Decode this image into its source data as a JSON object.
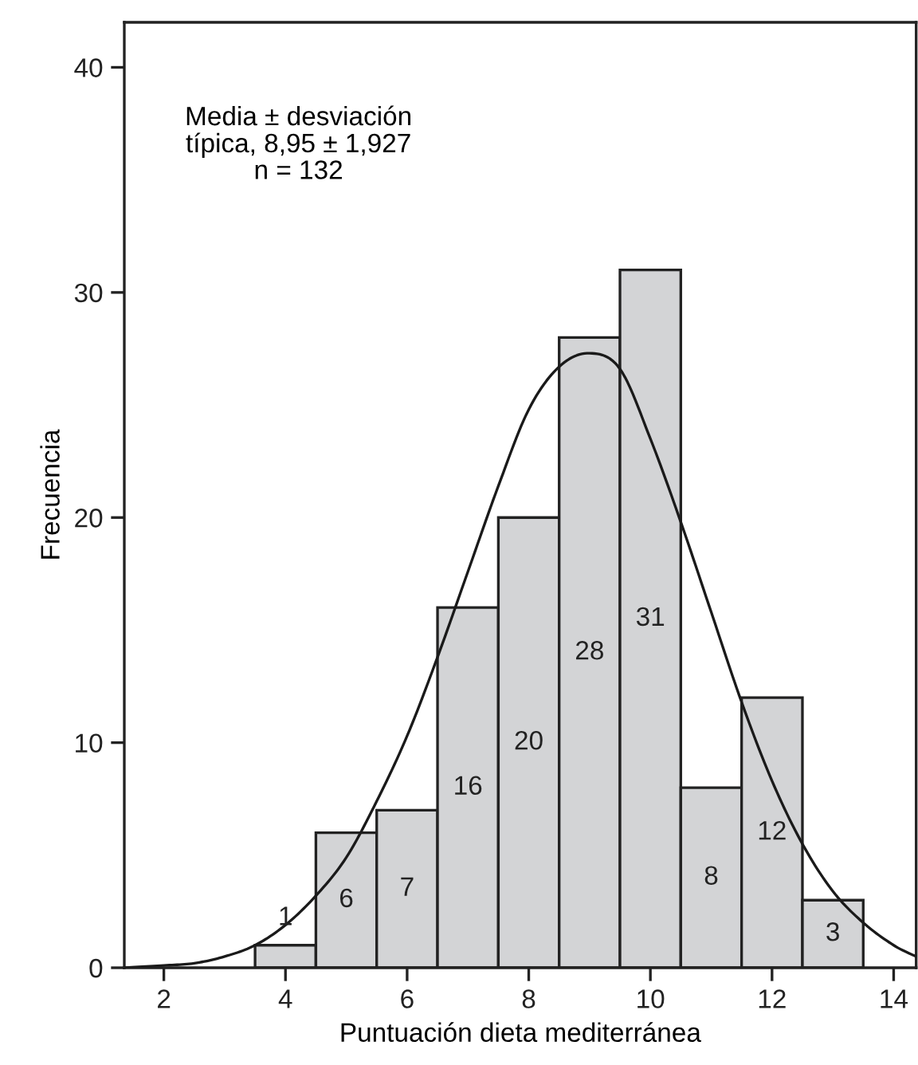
{
  "chart_data": {
    "type": "histogram",
    "xlabel": "Puntuación dieta mediterránea",
    "ylabel": "Frecuencia",
    "bins": [
      3.5,
      4.5,
      5.5,
      6.5,
      7.5,
      8.5,
      9.5,
      10.5,
      11.5,
      12.5,
      13.5
    ],
    "values": [
      1,
      6,
      7,
      16,
      20,
      28,
      31,
      8,
      12,
      3
    ],
    "color": "#d3d4d6",
    "value_labels": [
      "1",
      "6",
      "7",
      "16",
      "20",
      "28",
      "31",
      "8",
      "12",
      "3"
    ],
    "series": [
      {
        "type": "line",
        "color": "#1a1a1a",
        "x": [
          1.35,
          2,
          2.5,
          3,
          3.5,
          4,
          4.5,
          5,
          5.5,
          6,
          6.5,
          7,
          7.5,
          8,
          8.5,
          9,
          9.5,
          10,
          10.5,
          11,
          11.5,
          12,
          12.5,
          13,
          13.5,
          14,
          14.37
        ],
        "values": [
          0,
          0.1,
          0.2,
          0.5,
          1.0,
          1.9,
          3.2,
          4.9,
          7.4,
          10.3,
          13.8,
          17.6,
          21.4,
          24.8,
          26.7,
          27.3,
          26.6,
          23.5,
          19.8,
          15.8,
          11.8,
          8.3,
          5.5,
          3.4,
          2.0,
          1.0,
          0.5
        ]
      }
    ],
    "xlim": [
      1.35,
      14.37
    ],
    "ylim": [
      0,
      42
    ],
    "xticks": [
      2,
      4,
      6,
      8,
      10,
      12,
      14
    ],
    "yticks": [
      0,
      10,
      20,
      30,
      40
    ],
    "grid": false,
    "legend": false,
    "annotations": [
      "Media ± desviación\ntípica, 8,95 ± 1,927\nn = 132"
    ]
  }
}
